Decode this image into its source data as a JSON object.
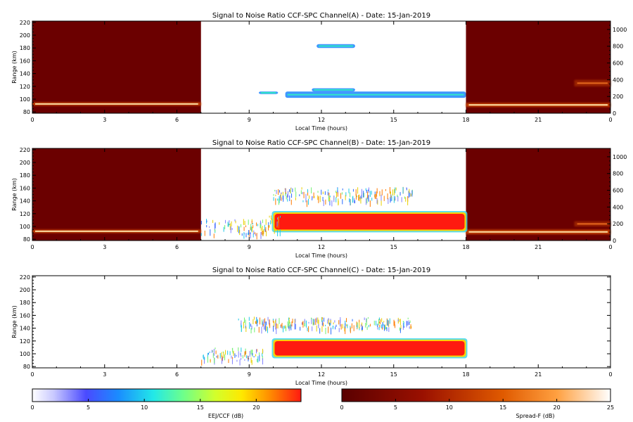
{
  "chart_data": [
    {
      "type": "heatmap",
      "title": "Signal to Noise Ratio CCF-SPC Channel(A) - Date: 15-Jan-2019",
      "xlabel": "Local Time (hours)",
      "ylabel": "Range (km)",
      "xlim": [
        0,
        24
      ],
      "ylim": [
        78,
        222
      ],
      "x_ticks": [
        "0",
        "3",
        "6",
        "9",
        "12",
        "15",
        "18",
        "21",
        "0"
      ],
      "y_ticks": [
        "80",
        "100",
        "120",
        "140",
        "160",
        "180",
        "200",
        "220"
      ],
      "right_ylim": [
        0,
        1100
      ],
      "right_y_ticks": [
        "0",
        "200",
        "400",
        "600",
        "800",
        "1000"
      ],
      "spread_f_intervals": [
        [
          0,
          7.0
        ],
        [
          18.0,
          24
        ]
      ],
      "eej_ccf_features": [
        {
          "t": [
            10.5,
            18.0
          ],
          "h": [
            102,
            112
          ],
          "level": "low"
        },
        {
          "t": [
            11.6,
            13.4
          ],
          "h": [
            112,
            117
          ],
          "level": "low"
        },
        {
          "t": [
            11.8,
            13.4
          ],
          "h": [
            180,
            186
          ],
          "level": "low"
        },
        {
          "t": [
            9.4,
            10.2
          ],
          "h": [
            108,
            112
          ],
          "level": "low"
        }
      ],
      "spread_f_features": [
        {
          "t": [
            0,
            7.0
          ],
          "h": [
            90,
            95
          ],
          "level": "bright"
        },
        {
          "t": [
            18.0,
            24
          ],
          "h": [
            88,
            94
          ],
          "level": "bright"
        },
        {
          "t": [
            22.5,
            24
          ],
          "h": [
            120,
            130
          ],
          "level": "medium"
        }
      ]
    },
    {
      "type": "heatmap",
      "title": "Signal to Noise Ratio CCF-SPC Channel(B) - Date: 15-Jan-2019",
      "xlabel": "Local Time (hours)",
      "ylabel": "Range (km)",
      "xlim": [
        0,
        24
      ],
      "ylim": [
        78,
        222
      ],
      "x_ticks": [
        "0",
        "3",
        "6",
        "9",
        "12",
        "15",
        "18",
        "21",
        "0"
      ],
      "y_ticks": [
        "80",
        "100",
        "120",
        "140",
        "160",
        "180",
        "200",
        "220"
      ],
      "right_ylim": [
        0,
        1100
      ],
      "right_y_ticks": [
        "0",
        "200",
        "400",
        "600",
        "800",
        "1000"
      ],
      "spread_f_intervals": [
        [
          0,
          7.0
        ],
        [
          18.0,
          24
        ]
      ],
      "eej_ccf_features": [
        {
          "t": [
            10.0,
            18.0
          ],
          "h": [
            93,
            122
          ],
          "level": "high"
        },
        {
          "t": [
            7.0,
            9.8
          ],
          "h": [
            88,
            112
          ],
          "level": "scatter"
        },
        {
          "t": [
            9.8,
            10.3
          ],
          "h": [
            92,
            118
          ],
          "level": "scatter"
        },
        {
          "t": [
            10.0,
            15.8
          ],
          "h": [
            140,
            162
          ],
          "level": "scatter"
        }
      ],
      "spread_f_features": [
        {
          "t": [
            0,
            7.0
          ],
          "h": [
            90,
            95
          ],
          "level": "bright"
        },
        {
          "t": [
            18.0,
            24
          ],
          "h": [
            88,
            95
          ],
          "level": "bright"
        },
        {
          "t": [
            22.5,
            24
          ],
          "h": [
            100,
            108
          ],
          "level": "medium"
        }
      ]
    },
    {
      "type": "heatmap",
      "title": "Signal to Noise Ratio CCF-SPC Channel(C) - Date: 15-Jan-2019",
      "xlabel": "Local Time (hours)",
      "ylabel": "Range (km)",
      "xlim": [
        0,
        24
      ],
      "ylim": [
        78,
        222
      ],
      "x_ticks": [
        "0",
        "3",
        "6",
        "9",
        "12",
        "15",
        "18",
        "21",
        "0"
      ],
      "y_ticks": [
        "80",
        "100",
        "120",
        "140",
        "160",
        "180",
        "200",
        "220"
      ],
      "eej_ccf_features": [
        {
          "t": [
            10.0,
            18.0
          ],
          "h": [
            95,
            122
          ],
          "level": "high"
        },
        {
          "t": [
            7.0,
            9.6
          ],
          "h": [
            90,
            110
          ],
          "level": "scatter"
        },
        {
          "t": [
            8.5,
            15.8
          ],
          "h": [
            140,
            158
          ],
          "level": "scatter"
        }
      ]
    }
  ],
  "colorbars": {
    "left": {
      "label": "EEJ/CCF (dB)",
      "range": [
        0,
        24
      ],
      "ticks": [
        "0",
        "5",
        "10",
        "15",
        "20"
      ],
      "scheme": "rainbow"
    },
    "right": {
      "label": "Spread-F (dB)",
      "range": [
        0,
        25
      ],
      "ticks": [
        "0",
        "5",
        "10",
        "15",
        "20",
        "25"
      ],
      "scheme": "heat"
    }
  },
  "colors": {
    "darkred": "#6b0000",
    "eej_high": "#ff1a10"
  }
}
